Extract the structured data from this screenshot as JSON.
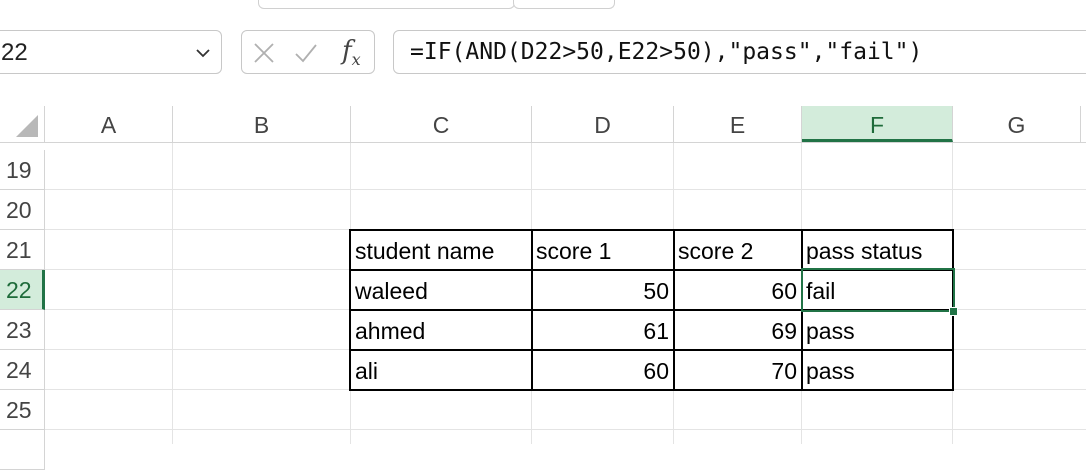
{
  "name_box": {
    "value": "22"
  },
  "formula_bar": {
    "formula": "=IF(AND(D22>50,E22>50),\"pass\",\"fail\")"
  },
  "columns": [
    "A",
    "B",
    "C",
    "D",
    "E",
    "F",
    "G"
  ],
  "selected_column": "F",
  "rows": [
    "19",
    "20",
    "21",
    "22",
    "23",
    "24",
    "25"
  ],
  "selected_row": "22",
  "table": {
    "headers": [
      "student name",
      "score 1",
      "score 2",
      "pass status"
    ],
    "rows": [
      {
        "name": "waleed",
        "score1": "50",
        "score2": "60",
        "status": "fail"
      },
      {
        "name": "ahmed",
        "score1": "61",
        "score2": "69",
        "status": "pass"
      },
      {
        "name": "ali",
        "score1": "60",
        "score2": "70",
        "status": "pass"
      }
    ]
  },
  "colors": {
    "accent": "#217346",
    "selected_header_bg": "#d3ecdb"
  },
  "icons": {
    "cancel": "x-icon",
    "enter": "checkmark-icon",
    "function": "fx-icon",
    "dropdown": "chevron-down-icon"
  }
}
